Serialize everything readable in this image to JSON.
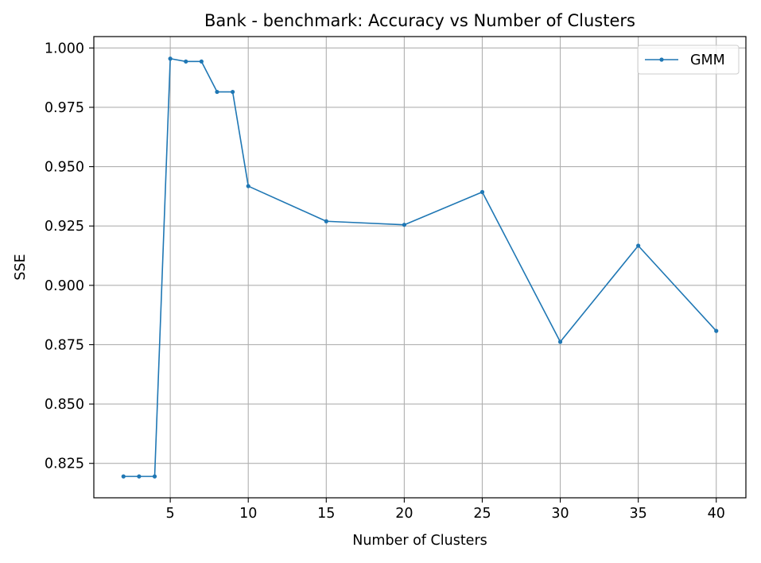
{
  "chart_data": {
    "type": "line",
    "title": "Bank - benchmark: Accuracy vs Number of Clusters",
    "xlabel": "Number of Clusters",
    "ylabel": "SSE",
    "xlim": [
      0.1,
      41.9
    ],
    "ylim": [
      0.8105,
      1.0048
    ],
    "xticks": [
      5,
      10,
      15,
      20,
      25,
      30,
      35,
      40
    ],
    "yticks": [
      0.825,
      0.85,
      0.875,
      0.9,
      0.925,
      0.95,
      0.975,
      1.0
    ],
    "ytick_labels": [
      "0.825",
      "0.850",
      "0.875",
      "0.900",
      "0.925",
      "0.950",
      "0.975",
      "1.000"
    ],
    "grid": true,
    "legend_position": "top-right",
    "series": [
      {
        "name": "GMM",
        "color": "#1f77b4",
        "marker": "circle",
        "x": [
          2,
          3,
          4,
          5,
          6,
          7,
          8,
          9,
          10,
          15,
          20,
          25,
          30,
          35,
          40
        ],
        "y": [
          0.8195,
          0.8195,
          0.8195,
          0.9955,
          0.9943,
          0.9943,
          0.9815,
          0.9815,
          0.9418,
          0.927,
          0.9255,
          0.9393,
          0.8762,
          0.9167,
          0.8808
        ]
      }
    ]
  }
}
